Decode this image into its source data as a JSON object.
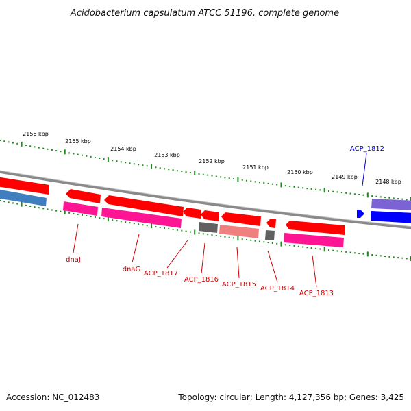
{
  "title": "Acidobacterium capsulatum ATCC 51196, complete genome",
  "footer": {
    "accession": "Accession: NC_012483",
    "summary": "Topology: circular; Length: 4,127,356 bp; Genes: 3,425"
  },
  "colors": {
    "backbone": "#8a8a8a",
    "tick_dot": "#1a8a1a",
    "forward_cds": "#0000ff",
    "forward_other": "#7b63d6",
    "reverse_cds": "#ff0000",
    "reverse_rna": "#ff1493",
    "reverse_pseudo": "#f08080",
    "reverse_misc": "#606060",
    "prior_blue": "#3f7fbf",
    "forward_label": "#0000cc",
    "reverse_label": "#cc0000"
  },
  "scale_ticks": [
    {
      "label": "2156 kbp"
    },
    {
      "label": "2155 kbp"
    },
    {
      "label": "2154 kbp"
    },
    {
      "label": "2153 kbp"
    },
    {
      "label": "2152 kbp"
    },
    {
      "label": "2151 kbp"
    },
    {
      "label": "2150 kbp"
    },
    {
      "label": "2149 kbp"
    },
    {
      "label": "2148 kbp"
    }
  ],
  "gene_labels": [
    {
      "text": "dnaJ",
      "strand": "reverse"
    },
    {
      "text": "dnaG",
      "strand": "reverse"
    },
    {
      "text": "ACP_1817",
      "strand": "reverse"
    },
    {
      "text": "ACP_1816",
      "strand": "reverse"
    },
    {
      "text": "ACP_1815",
      "strand": "reverse"
    },
    {
      "text": "ACP_1814",
      "strand": "reverse"
    },
    {
      "text": "ACP_1813",
      "strand": "reverse"
    },
    {
      "text": "ACP_1812",
      "strand": "forward"
    }
  ]
}
